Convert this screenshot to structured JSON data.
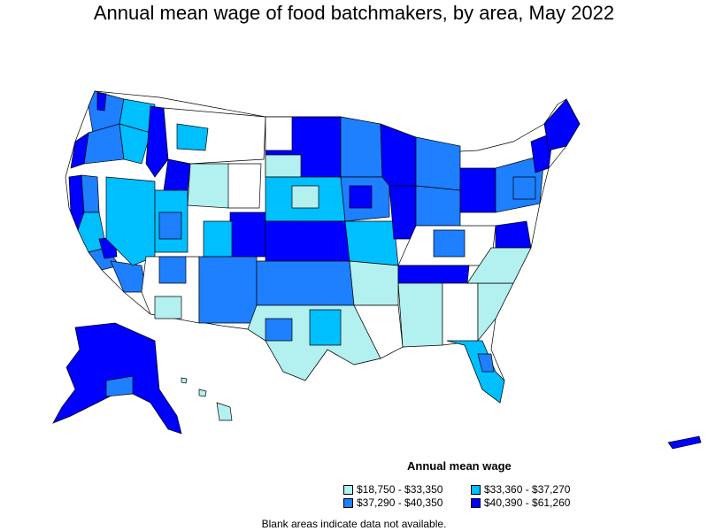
{
  "title": "Annual mean wage of food batchmakers, by area, May 2022",
  "legend": {
    "title": "Annual mean wage",
    "items": [
      {
        "label": "$18,750 - $33,350",
        "color": "#b3f0f0"
      },
      {
        "label": "$33,360 - $37,270",
        "color": "#00bfff"
      },
      {
        "label": "$37,290 - $40,350",
        "color": "#1e7fff"
      },
      {
        "label": "$40,390 - $61,260",
        "color": "#0000ff"
      }
    ]
  },
  "footnote": "Blank areas indicate data not available.",
  "colors": {
    "outline": "#000000",
    "blank": "#ffffff"
  }
}
